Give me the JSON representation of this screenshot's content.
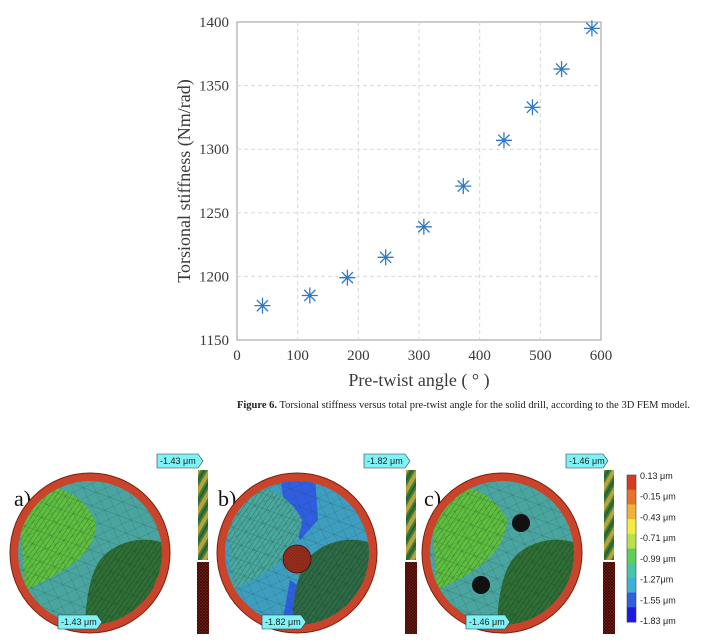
{
  "chart_data": {
    "type": "scatter",
    "xlabel": "Pre-twist angle ( ° )",
    "ylabel": "Torsional stiffness (Nm/rad)",
    "xlim": [
      0,
      600
    ],
    "ylim": [
      1150,
      1400
    ],
    "xticks": [
      "0",
      "100",
      "200",
      "300",
      "400",
      "500",
      "600"
    ],
    "yticks": [
      "1150",
      "1200",
      "1250",
      "1300",
      "1350",
      "1400"
    ],
    "grid": true,
    "marker": "asterisk",
    "color": "#2f78c4",
    "points": [
      {
        "x": 42,
        "y": 1177
      },
      {
        "x": 120,
        "y": 1185
      },
      {
        "x": 182,
        "y": 1199
      },
      {
        "x": 245,
        "y": 1215
      },
      {
        "x": 308,
        "y": 1239
      },
      {
        "x": 373,
        "y": 1271
      },
      {
        "x": 440,
        "y": 1307
      },
      {
        "x": 487,
        "y": 1333
      },
      {
        "x": 535,
        "y": 1363
      },
      {
        "x": 585,
        "y": 1395
      }
    ]
  },
  "caption": {
    "label": "Figure 6.",
    "text": " Torsional stiffness versus total pre-twist angle for the solid drill, according to the 3D FEM model."
  },
  "panels": [
    {
      "label": "a)",
      "top_value": "-1.43 μm",
      "bottom_value": "-1.43 μm"
    },
    {
      "label": "b)",
      "top_value": "-1.82 μm",
      "bottom_value": "-1.82 μm"
    },
    {
      "label": "c)",
      "top_value": "-1.46 μm",
      "bottom_value": "-1.46 μm"
    }
  ],
  "colorbar": {
    "labels": [
      "0.13 μm",
      "-0.15 μm",
      "-0.43 μm",
      "-0.71 μm",
      "-0.99 μm",
      "-1.27μm",
      "-1.55 μm",
      "-1.83 μm"
    ],
    "colors": [
      "#d73a1e",
      "#e8732a",
      "#f2b233",
      "#f4ec3a",
      "#b8e04a",
      "#5fcf5a",
      "#46c7a8",
      "#39b3d6",
      "#2f5ee0",
      "#1a1ae0"
    ]
  }
}
